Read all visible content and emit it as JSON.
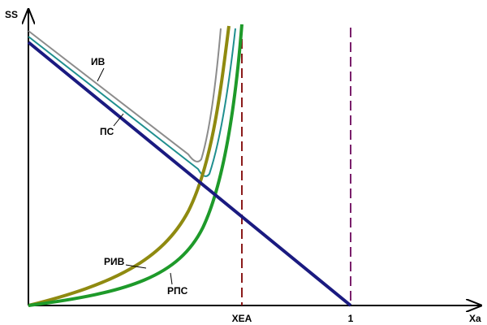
{
  "axes": {
    "y_label": "SS",
    "x_label": "Xa",
    "x_marks": [
      "XEA",
      "1"
    ]
  },
  "curves": {
    "iv": "ИВ",
    "ps": "ПС",
    "riv": "РИВ",
    "rps": "РПС"
  }
}
